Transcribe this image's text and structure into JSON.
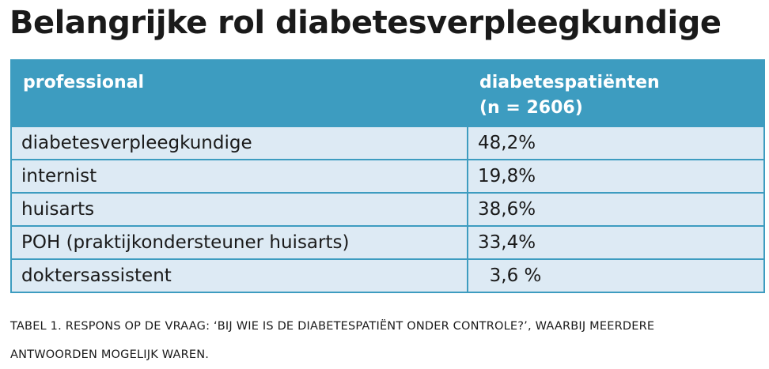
{
  "title": "Belangrijke rol diabetesverpleegkundige",
  "table": {
    "headers": {
      "professional": "professional",
      "patients_line1": "diabetespatiënten",
      "patients_line2": "(n = 2606)"
    },
    "rows": [
      {
        "professional": "diabetesverpleegkundige",
        "value": "48,2%"
      },
      {
        "professional": "internist",
        "value": "19,8%"
      },
      {
        "professional": "huisarts",
        "value": "38,6%"
      },
      {
        "professional": "POH (praktijkondersteuner huisarts)",
        "value": "33,4%"
      },
      {
        "professional": "doktersassistent",
        "value": "  3,6 %"
      }
    ]
  },
  "caption": {
    "line1": "TABEL 1. RESPONS OP DE VRAAG: ‘BIJ WIE IS DE DIABETESPATIËNT ONDER CONTROLE?’, WAARBIJ MEERDERE",
    "line2": "ANTWOORDEN MOGELIJK WAREN."
  },
  "colors": {
    "header_bg": "#3d9cc0",
    "row_bg": "#ddeaf4",
    "border": "#3d9cc0"
  }
}
